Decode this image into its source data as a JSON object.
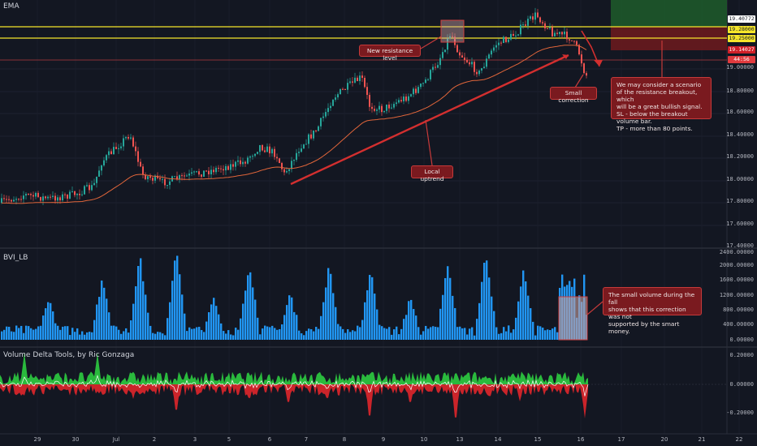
{
  "panes": {
    "price": {
      "label": "EMA"
    },
    "volume": {
      "label": "BVI_LB"
    },
    "delta": {
      "label": "Volume Delta Tools, by Ric Gonzaga"
    }
  },
  "price_axis": [
    "19.00000",
    "18.80000",
    "18.60000",
    "18.40000",
    "18.20000",
    "18.00000",
    "17.80000",
    "17.60000",
    "17.40000"
  ],
  "price_tags": [
    {
      "text": "19.40772",
      "bg": "#ffffff",
      "fg": "#131722"
    },
    {
      "text": "19.28000",
      "bg": "#f5e52b",
      "fg": "#131722"
    },
    {
      "text": "19.25000",
      "bg": "#f5e52b",
      "fg": "#131722"
    },
    {
      "text": "19.14027",
      "bg": "#d01f28",
      "fg": "#ffffff"
    },
    {
      "text": "44:56",
      "bg": "#e03a3e",
      "fg": "#ffffff"
    }
  ],
  "volume_axis": [
    "2400.00000",
    "2000.00000",
    "1600.00000",
    "1200.00000",
    "800.00000",
    "400.00000",
    "0.00000"
  ],
  "delta_axis": [
    "0.20000",
    "0.00000",
    "-0.20000"
  ],
  "date_labels": [
    "29",
    "30",
    "Jul",
    "2",
    "3",
    "5",
    "6",
    "7",
    "8",
    "9",
    "10",
    "13",
    "14",
    "15",
    "16",
    "17",
    "20",
    "21",
    "22"
  ],
  "annotations": {
    "resistance": "New resistance level",
    "uptrend": "Local uptrend",
    "correction": "Small correction",
    "scenario": [
      "We may consider a scenario",
      "of the resistance breakout, which",
      "will be a great bullish signal.",
      "SL - below the breakout volume bar.",
      "TP - more than 80 points."
    ],
    "volume_note": [
      "The small volume during the fall",
      "shows that this correction was not",
      "supported by the smart money."
    ]
  },
  "colors": {
    "background": "#131722",
    "up": "#26a69a",
    "down": "#ef5350",
    "ema": "#e0653a",
    "volume": "#2196f3",
    "resistance_line": "#f5e52b",
    "callout": "#7a1a1f"
  }
}
